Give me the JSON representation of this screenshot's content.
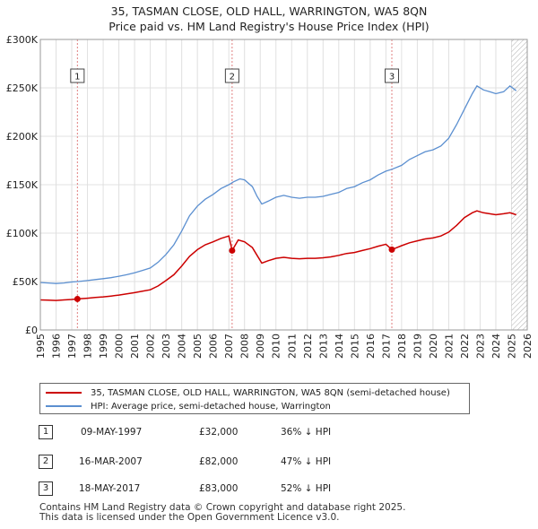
{
  "title_line1": "35, TASMAN CLOSE, OLD HALL, WARRINGTON, WA5 8QN",
  "title_line2": "Price paid vs. HM Land Registry's House Price Index (HPI)",
  "colors": {
    "property": "#cc0000",
    "hpi": "#5b8fd0",
    "grid": "#e0e0e0",
    "plot_bg": "#ffffff",
    "hatch": "#b0b0b0"
  },
  "chart_data": {
    "type": "line",
    "xlim": [
      1995,
      2026
    ],
    "ylim": [
      0,
      300000
    ],
    "x_ticks": [
      1995,
      1996,
      1997,
      1998,
      1999,
      2000,
      2001,
      2002,
      2003,
      2004,
      2005,
      2006,
      2007,
      2008,
      2009,
      2010,
      2011,
      2012,
      2013,
      2014,
      2015,
      2016,
      2017,
      2018,
      2019,
      2020,
      2021,
      2022,
      2023,
      2024,
      2025,
      2026
    ],
    "y_ticks": [
      {
        "value": 0,
        "label": "£0"
      },
      {
        "value": 50000,
        "label": "£50K"
      },
      {
        "value": 100000,
        "label": "£100K"
      },
      {
        "value": 150000,
        "label": "£150K"
      },
      {
        "value": 200000,
        "label": "£200K"
      },
      {
        "value": 250000,
        "label": "£250K"
      },
      {
        "value": 300000,
        "label": "£300K"
      }
    ],
    "hatch_from": 2025.0,
    "series": [
      {
        "name": "hpi",
        "points": [
          [
            1995.0,
            49000
          ],
          [
            1995.5,
            48500
          ],
          [
            1996.0,
            48000
          ],
          [
            1996.5,
            48500
          ],
          [
            1997.0,
            49500
          ],
          [
            1997.4,
            50000
          ],
          [
            1998.0,
            51000
          ],
          [
            1998.5,
            52000
          ],
          [
            1999.0,
            53000
          ],
          [
            1999.5,
            54000
          ],
          [
            2000.0,
            55500
          ],
          [
            2000.5,
            57000
          ],
          [
            2001.0,
            59000
          ],
          [
            2001.5,
            61500
          ],
          [
            2002.0,
            64000
          ],
          [
            2002.5,
            70000
          ],
          [
            2003.0,
            78000
          ],
          [
            2003.5,
            88000
          ],
          [
            2004.0,
            102000
          ],
          [
            2004.5,
            118000
          ],
          [
            2005.0,
            128000
          ],
          [
            2005.5,
            135000
          ],
          [
            2006.0,
            140000
          ],
          [
            2006.5,
            146000
          ],
          [
            2007.0,
            150000
          ],
          [
            2007.3,
            153000
          ],
          [
            2007.7,
            156000
          ],
          [
            2008.0,
            155000
          ],
          [
            2008.5,
            148000
          ],
          [
            2008.8,
            138000
          ],
          [
            2009.1,
            130000
          ],
          [
            2009.5,
            133000
          ],
          [
            2010.0,
            137000
          ],
          [
            2010.5,
            139000
          ],
          [
            2011.0,
            137000
          ],
          [
            2011.5,
            136000
          ],
          [
            2012.0,
            137000
          ],
          [
            2012.5,
            137000
          ],
          [
            2013.0,
            138000
          ],
          [
            2013.5,
            140000
          ],
          [
            2014.0,
            142000
          ],
          [
            2014.5,
            146000
          ],
          [
            2015.0,
            148000
          ],
          [
            2015.5,
            152000
          ],
          [
            2016.0,
            155000
          ],
          [
            2016.5,
            160000
          ],
          [
            2017.0,
            164000
          ],
          [
            2017.4,
            166000
          ],
          [
            2018.0,
            170000
          ],
          [
            2018.5,
            176000
          ],
          [
            2019.0,
            180000
          ],
          [
            2019.5,
            184000
          ],
          [
            2020.0,
            186000
          ],
          [
            2020.5,
            190000
          ],
          [
            2021.0,
            198000
          ],
          [
            2021.5,
            212000
          ],
          [
            2022.0,
            228000
          ],
          [
            2022.5,
            244000
          ],
          [
            2022.8,
            252000
          ],
          [
            2023.2,
            248000
          ],
          [
            2023.6,
            246000
          ],
          [
            2024.0,
            244000
          ],
          [
            2024.5,
            246000
          ],
          [
            2024.9,
            252000
          ],
          [
            2025.3,
            247000
          ]
        ]
      },
      {
        "name": "property",
        "points": [
          [
            1995.0,
            31000
          ],
          [
            1995.5,
            30800
          ],
          [
            1996.0,
            30500
          ],
          [
            1996.5,
            31000
          ],
          [
            1997.0,
            31500
          ],
          [
            1997.36,
            32000
          ],
          [
            1998.0,
            32800
          ],
          [
            1998.5,
            33500
          ],
          [
            1999.0,
            34200
          ],
          [
            1999.5,
            35000
          ],
          [
            2000.0,
            36000
          ],
          [
            2000.5,
            37200
          ],
          [
            2001.0,
            38500
          ],
          [
            2001.5,
            40000
          ],
          [
            2002.0,
            41500
          ],
          [
            2002.5,
            45500
          ],
          [
            2003.0,
            51000
          ],
          [
            2003.5,
            57000
          ],
          [
            2004.0,
            66000
          ],
          [
            2004.5,
            76000
          ],
          [
            2005.0,
            83000
          ],
          [
            2005.5,
            88000
          ],
          [
            2006.0,
            91000
          ],
          [
            2006.5,
            94500
          ],
          [
            2007.0,
            97000
          ],
          [
            2007.21,
            82000
          ],
          [
            2007.6,
            93000
          ],
          [
            2008.0,
            91000
          ],
          [
            2008.5,
            85000
          ],
          [
            2008.8,
            77000
          ],
          [
            2009.1,
            69000
          ],
          [
            2009.5,
            71500
          ],
          [
            2010.0,
            74000
          ],
          [
            2010.5,
            75000
          ],
          [
            2011.0,
            74000
          ],
          [
            2011.5,
            73500
          ],
          [
            2012.0,
            74000
          ],
          [
            2012.5,
            74000
          ],
          [
            2013.0,
            74500
          ],
          [
            2013.5,
            75500
          ],
          [
            2014.0,
            77000
          ],
          [
            2014.5,
            79000
          ],
          [
            2015.0,
            80000
          ],
          [
            2015.5,
            82000
          ],
          [
            2016.0,
            84000
          ],
          [
            2016.5,
            86500
          ],
          [
            2017.0,
            88500
          ],
          [
            2017.38,
            83000
          ],
          [
            2018.0,
            87000
          ],
          [
            2018.5,
            90000
          ],
          [
            2019.0,
            92000
          ],
          [
            2019.5,
            94000
          ],
          [
            2020.0,
            95000
          ],
          [
            2020.5,
            97000
          ],
          [
            2021.0,
            101000
          ],
          [
            2021.5,
            108000
          ],
          [
            2022.0,
            116000
          ],
          [
            2022.5,
            121000
          ],
          [
            2022.8,
            123000
          ],
          [
            2023.2,
            121000
          ],
          [
            2023.6,
            120000
          ],
          [
            2024.0,
            119000
          ],
          [
            2024.5,
            120000
          ],
          [
            2024.9,
            121000
          ],
          [
            2025.3,
            119000
          ]
        ]
      }
    ],
    "sales": [
      {
        "id": "1",
        "x": 1997.36,
        "price": 32000
      },
      {
        "id": "2",
        "x": 2007.21,
        "price": 82000
      },
      {
        "id": "3",
        "x": 2017.38,
        "price": 83000
      }
    ]
  },
  "legend": {
    "property_label": "35, TASMAN CLOSE, OLD HALL, WARRINGTON, WA5 8QN (semi-detached house)",
    "hpi_label": "HPI: Average price, semi-detached house, Warrington"
  },
  "transactions": [
    {
      "num": "1",
      "date": "09-MAY-1997",
      "price": "£32,000",
      "hpi": "36% ↓ HPI"
    },
    {
      "num": "2",
      "date": "16-MAR-2007",
      "price": "£82,000",
      "hpi": "47% ↓ HPI"
    },
    {
      "num": "3",
      "date": "18-MAY-2017",
      "price": "£83,000",
      "hpi": "52% ↓ HPI"
    }
  ],
  "footer_line1": "Contains HM Land Registry data © Crown copyright and database right 2025.",
  "footer_line2": "This data is licensed under the Open Government Licence v3.0."
}
